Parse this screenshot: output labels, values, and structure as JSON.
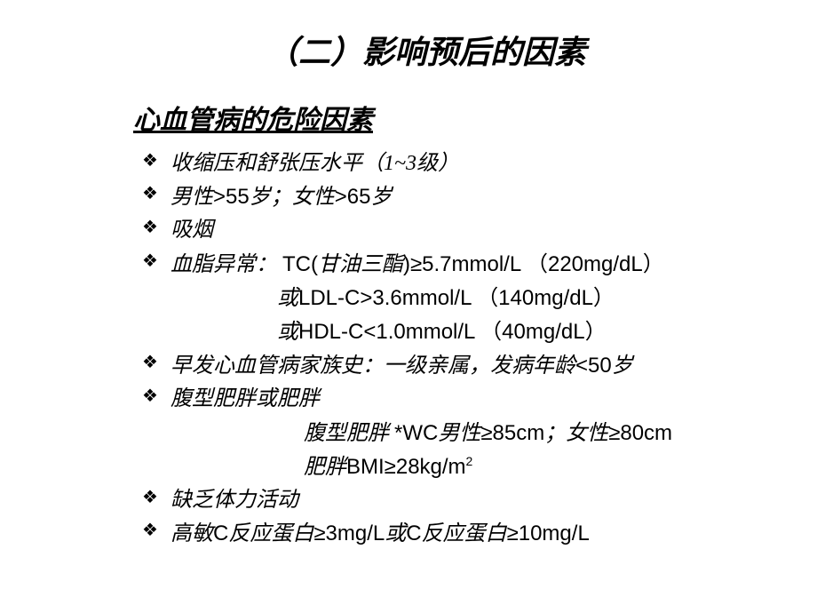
{
  "title": "（二）影响预后的因素",
  "subtitle": "心血管病的危险因素",
  "items": {
    "bp": "收缩压和舒张压水平（1~3级）",
    "age_prefix": "男性",
    "age_m": ">55",
    "age_mid": "岁；女性",
    "age_f": ">65",
    "age_suffix": "岁",
    "smoke": "吸烟",
    "lipid_label": "血脂异常：",
    "lipid_tc_a": "TC(",
    "lipid_tc_b": "甘油三酯",
    "lipid_tc_c": ")≥5.7mmol/L （220mg/dL）",
    "lipid_ldl_a": "或",
    "lipid_ldl_b": "LDL-C>3.6mmol/L （140mg/dL）",
    "lipid_hdl_a": "或",
    "lipid_hdl_b": "HDL-C<1.0mmol/L （40mg/dL）",
    "family_a": "早发心血管病家族史：一级亲属，发病年龄",
    "family_b": "<50",
    "family_c": "岁",
    "obesity": "腹型肥胖或肥胖",
    "obesity_wc_a": "腹型肥胖 ",
    "obesity_wc_b": "*WC",
    "obesity_wc_c": "男性",
    "obesity_wc_d": "≥85cm",
    "obesity_wc_e": "；女性",
    "obesity_wc_f": "≥80cm",
    "obesity_bmi_a": "肥胖",
    "obesity_bmi_b": "BMI≥28kg/m",
    "obesity_bmi_sq": "2",
    "exercise": "缺乏体力活动",
    "crp_a": "高敏",
    "crp_b": "C",
    "crp_c": "反应蛋白",
    "crp_d": "≥3mg/L",
    "crp_e": "或",
    "crp_f": "C",
    "crp_g": "反应蛋白",
    "crp_h": "≥10mg/L"
  },
  "style": {
    "background": "#ffffff",
    "text_color": "#000000",
    "title_fontsize": 36,
    "subtitle_fontsize": 30,
    "body_fontsize": 24,
    "bullet_glyph": "❖",
    "font_family_cjk": "KaiTi",
    "font_family_latin": "Arial"
  }
}
